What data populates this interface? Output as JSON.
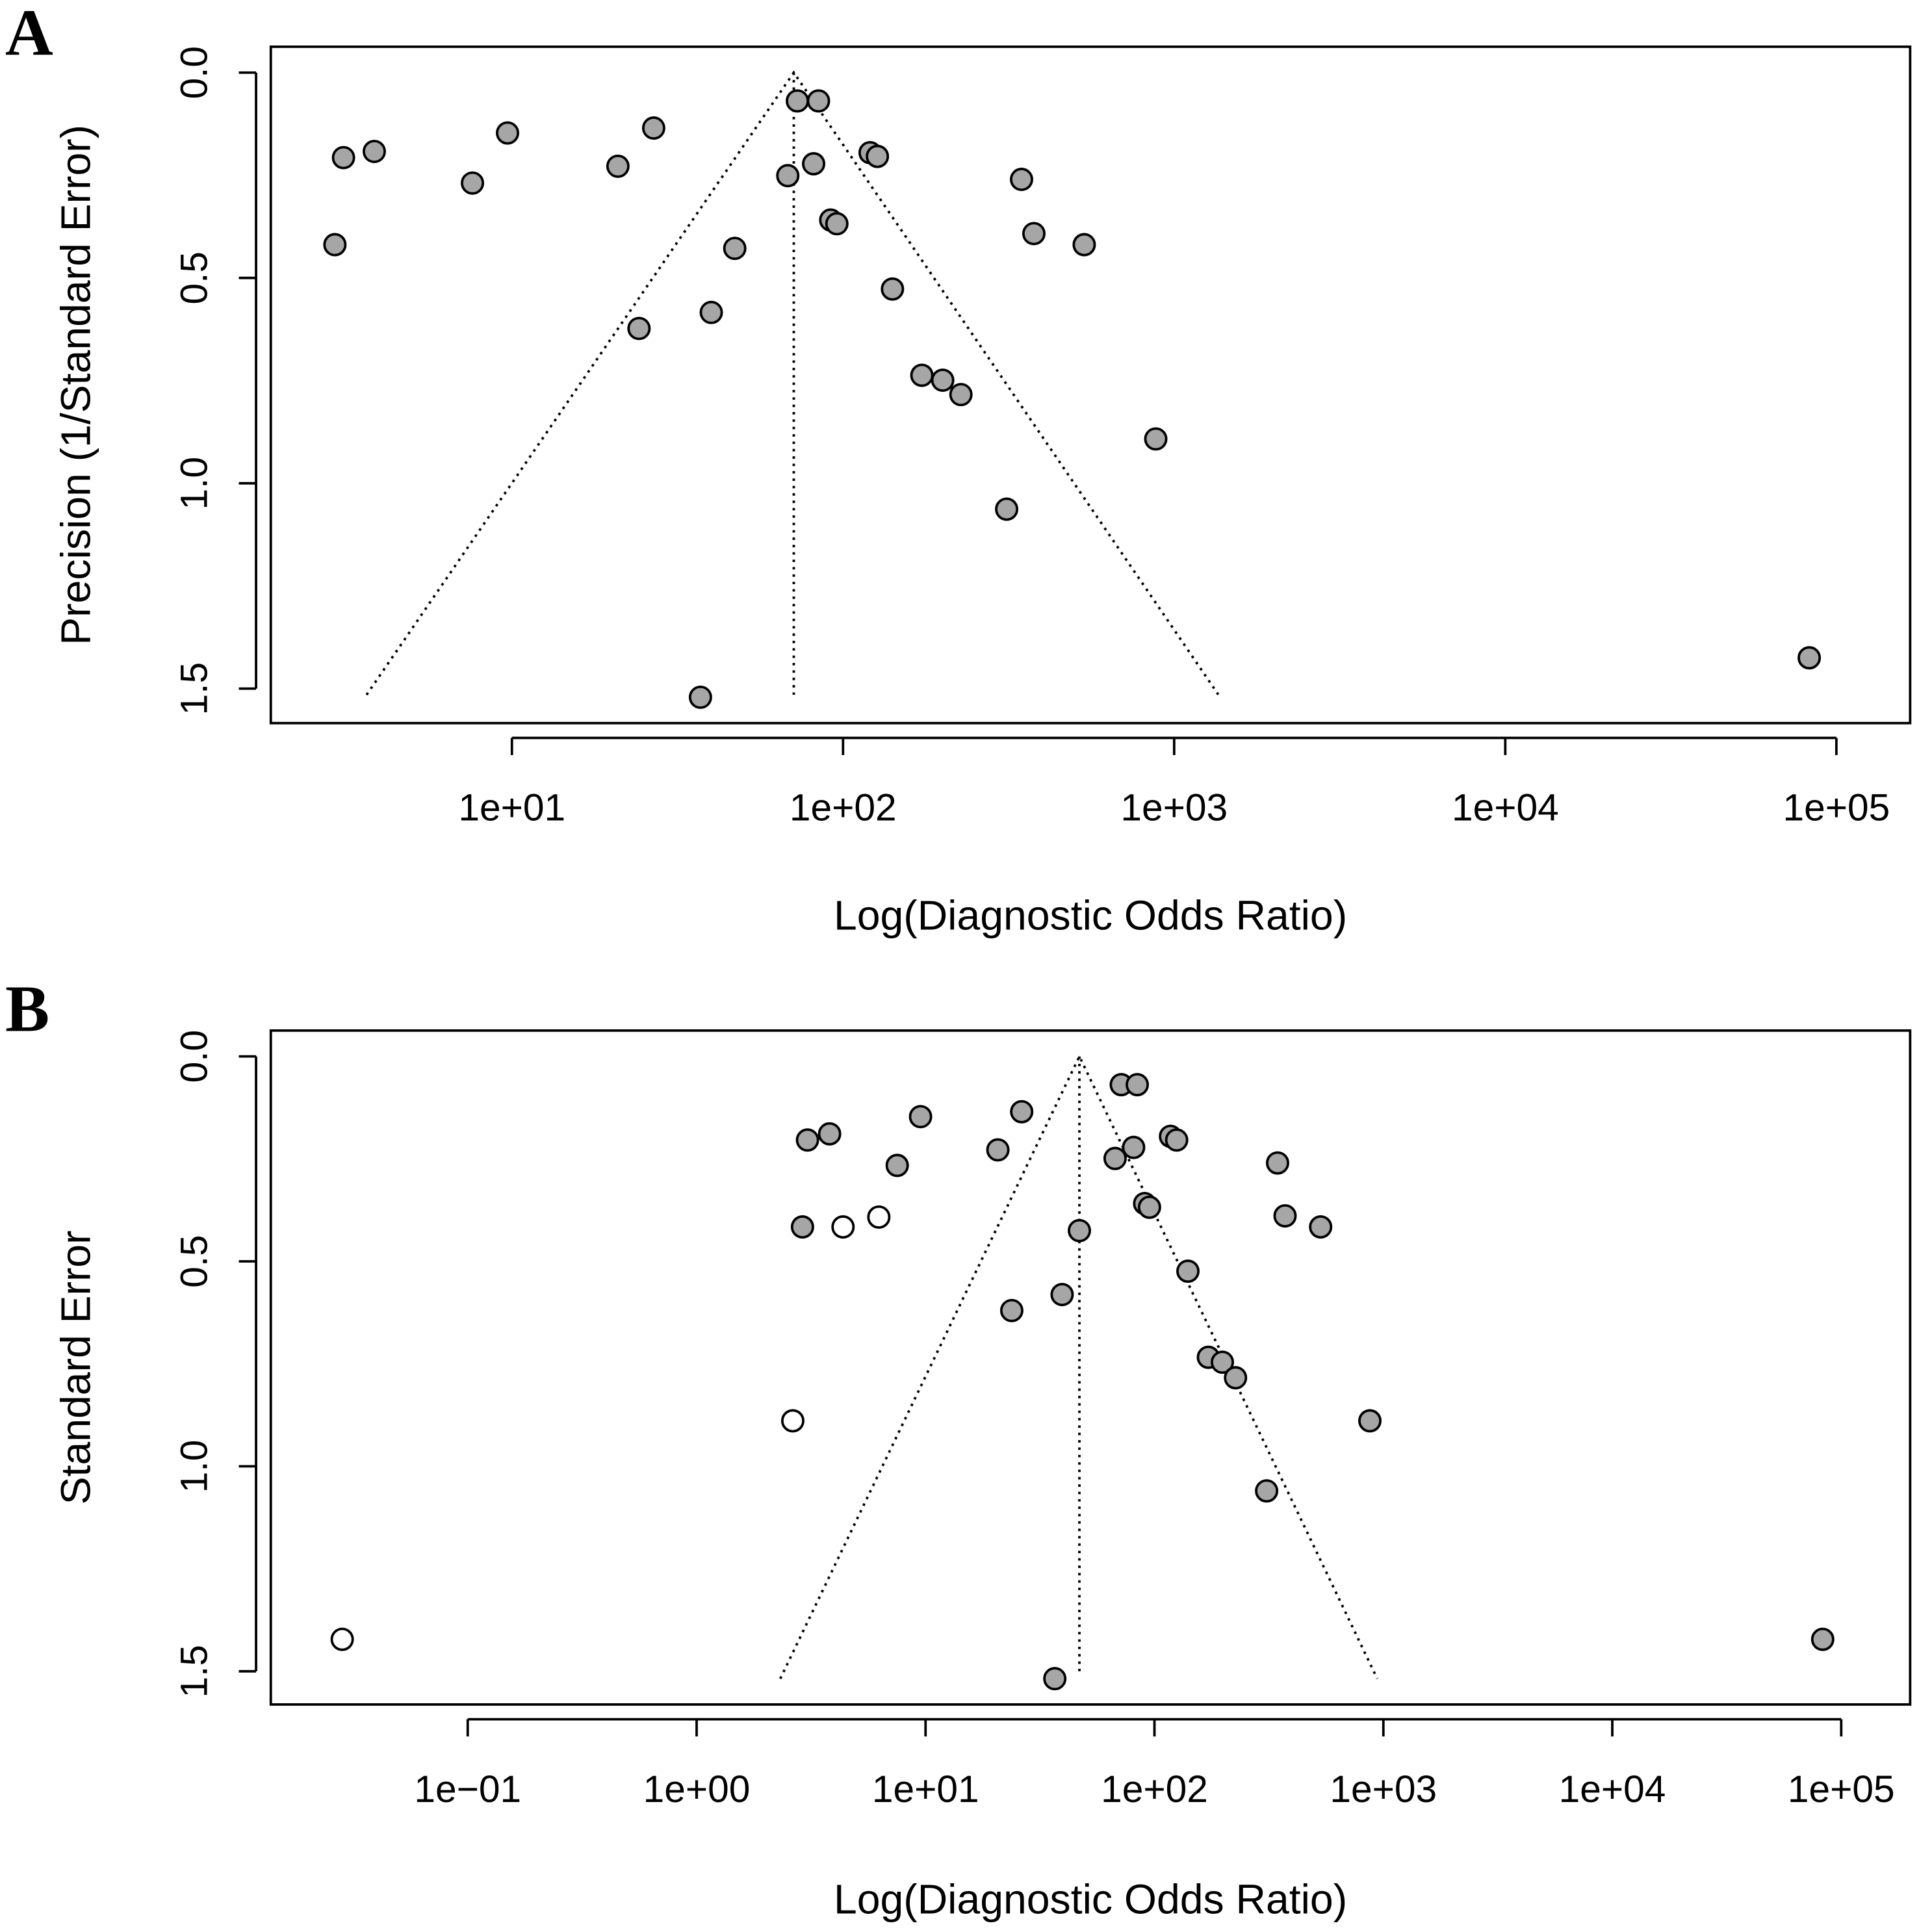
{
  "chart_data": [
    {
      "type": "scatter",
      "panel_label": "A",
      "xlabel": "Log(Diagnostic Odds Ratio)",
      "ylabel": "Precision (1/Standard Error)",
      "log_x": true,
      "y_reversed": true,
      "xlim": [
        1.87,
        167000
      ],
      "ylim": [
        -0.063,
        1.584
      ],
      "xticks": [
        {
          "value": 10,
          "label": "1e+01"
        },
        {
          "value": 100,
          "label": "1e+02"
        },
        {
          "value": 1000,
          "label": "1e+03"
        },
        {
          "value": 10000,
          "label": "1e+04"
        },
        {
          "value": 100000,
          "label": "1e+05"
        }
      ],
      "yticks": [
        {
          "value": 0,
          "label": "0.0"
        },
        {
          "value": 0.5,
          "label": "0.5"
        },
        {
          "value": 1,
          "label": "1.0"
        },
        {
          "value": 1.5,
          "label": "1.5"
        }
      ],
      "funnel": {
        "x": [
          3.64,
          71.0,
          1361
        ],
        "y": [
          1.515,
          0,
          1.515
        ]
      },
      "center_line": {
        "x": [
          71.0,
          71.0
        ],
        "y": [
          0,
          1.515
        ]
      },
      "series": [
        {
          "color": "#a6a6a6",
          "x": [
            2.92,
            3.1,
            3.84,
            7.6,
            9.7,
            20.9,
            26.8,
            24.2,
            40.0,
            47.1,
            37.1,
            68.1,
            72.8,
            84.3,
            81.5,
            91.8,
            95.8,
            120.7,
            127,
            141,
            173,
            200,
            227,
            312,
            346,
            377,
            535,
            880,
            82800
          ],
          "y": [
            0.419,
            0.207,
            0.192,
            0.269,
            0.147,
            0.228,
            0.135,
            0.623,
            0.584,
            0.428,
            1.521,
            0.251,
            0.069,
            0.069,
            0.222,
            0.359,
            0.368,
            0.195,
            0.204,
            0.527,
            0.737,
            0.749,
            0.784,
            1.063,
            0.26,
            0.392,
            0.419,
            0.892,
            1.425
          ]
        }
      ]
    },
    {
      "type": "scatter",
      "panel_label": "B",
      "xlabel": "Log(Diagnostic Odds Ratio)",
      "ylabel": "Standard Error",
      "log_x": true,
      "y_reversed": true,
      "xlim": [
        0.0138,
        200000
      ],
      "ylim": [
        -0.063,
        1.581
      ],
      "xticks": [
        {
          "value": 0.1,
          "label": "1e−01"
        },
        {
          "value": 1,
          "label": "1e+00"
        },
        {
          "value": 10,
          "label": "1e+01"
        },
        {
          "value": 100,
          "label": "1e+02"
        },
        {
          "value": 1000,
          "label": "1e+03"
        },
        {
          "value": 10000,
          "label": "1e+04"
        },
        {
          "value": 100000,
          "label": "1e+05"
        }
      ],
      "yticks": [
        {
          "value": 0,
          "label": "0.0"
        },
        {
          "value": 0.5,
          "label": "0.5"
        },
        {
          "value": 1,
          "label": "1.0"
        },
        {
          "value": 1.5,
          "label": "1.5"
        }
      ],
      "funnel": {
        "x": [
          2.32,
          47.0,
          940
        ],
        "y": [
          1.518,
          0,
          1.518
        ]
      },
      "center_line": {
        "x": [
          47.0,
          47.0
        ],
        "y": [
          0,
          1.512
        ]
      },
      "series": [
        {
          "color": "#a6a6a6",
          "x": [
            3.05,
            3.81,
            7.52,
            9.51,
            20.7,
            26.3,
            23.8,
            39.5,
            47.0,
            36.7,
            67.3,
            71.6,
            84.1,
            81.1,
            90.6,
            95.1,
            117.5,
            125,
            140,
            172,
            198,
            226,
            309,
            345,
            372,
            532,
            873,
            83000,
            2.9
          ],
          "y": [
            0.204,
            0.189,
            0.266,
            0.147,
            0.228,
            0.135,
            0.62,
            0.581,
            0.425,
            1.518,
            0.249,
            0.069,
            0.069,
            0.222,
            0.359,
            0.368,
            0.195,
            0.204,
            0.524,
            0.734,
            0.746,
            0.784,
            1.06,
            0.26,
            0.389,
            0.416,
            0.889,
            1.422,
            0.416
          ]
        },
        {
          "color": "#ffffff",
          "x": [
            4.36,
            6.25,
            2.63,
            0.0283
          ],
          "y": [
            0.416,
            0.392,
            0.889,
            1.422
          ]
        }
      ]
    }
  ]
}
